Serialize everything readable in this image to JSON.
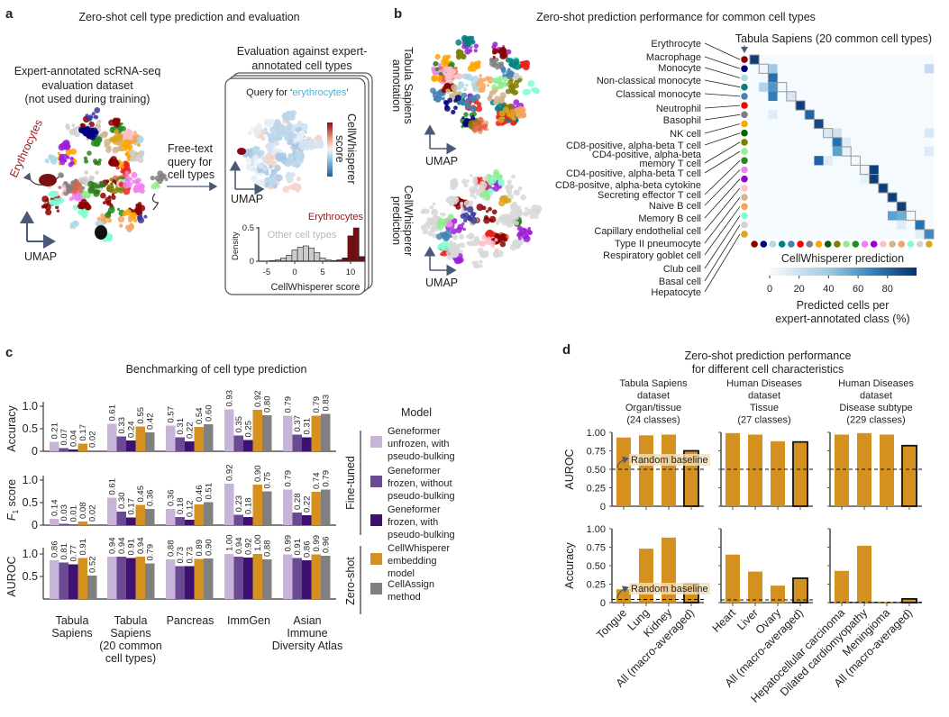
{
  "panel_a": {
    "letter": "a",
    "title": "Zero-shot cell type prediction and evaluation",
    "dataset_label": [
      "Expert-annotated scRNA-seq",
      "evaluation dataset",
      "(not used during training)"
    ],
    "erythrocytes_label": "Erythrocytes",
    "umap_label": "UMAP",
    "query_label": [
      "Free-text",
      "query for",
      "cell types"
    ],
    "eval_title": [
      "Evaluation against expert-",
      "annotated cell types"
    ],
    "query_prefix": "Query for ‘",
    "query_term": "erythrocytes",
    "query_suffix": "’",
    "score_label": [
      "CellWhisperer",
      "score"
    ],
    "umap_label_2": "UMAP",
    "hist_erythrocytes": "Erythrocytes",
    "hist_other": "Other cell types",
    "hist_ylabel": "Density",
    "hist_xlabel": "CellWhisperer score",
    "hist_yticks": [
      "0",
      "0.5"
    ],
    "hist_xticks": [
      "-5",
      "0",
      "5",
      "10"
    ],
    "colors": {
      "erythrocyte": "#8b1a1a",
      "query": "#4bb3d8",
      "other": "#cccccc"
    }
  },
  "panel_b": {
    "letter": "b",
    "title": "Zero-shot prediction performance for common cell types",
    "annotation_label": [
      "Tabula Sapiens",
      "annotation"
    ],
    "prediction_label": [
      "CellWhisperer",
      "prediction"
    ],
    "umap_label": "UMAP",
    "umap_label_2": "UMAP",
    "heatmap_title": "Tabula Sapiens (20 common cell types)",
    "xaxis_label": "CellWhisperer prediction",
    "colorbar_ticks": [
      "0",
      "20",
      "40",
      "60",
      "80"
    ],
    "colorbar_label": [
      "Predicted cells per",
      "expert-annotated class (%)"
    ]
  },
  "panel_c": {
    "letter": "c",
    "title": "Benchmarking of cell type prediction",
    "legend_title": "Model",
    "legend": [
      [
        "Geneformer",
        "unfrozen, with",
        "pseudo-bulking"
      ],
      [
        "Geneformer",
        "frozen, without",
        "pseudo-bulking"
      ],
      [
        "Geneformer",
        "frozen, with",
        "pseudo-bulking"
      ],
      [
        "CellWhisperer",
        "embedding",
        "model"
      ],
      [
        "CellAssign",
        "method"
      ]
    ],
    "group_fine_tuned": "Fine-tuned",
    "group_zero_shot": "Zero-shot",
    "dataset_labels": [
      [
        "Tabula",
        "Sapiens"
      ],
      [
        "Tabula",
        "Sapiens",
        "(20 common",
        "cell types)"
      ],
      [
        "Pancreas"
      ],
      [
        "ImmGen"
      ],
      [
        "Asian",
        "Immune",
        "Diversity Atlas"
      ]
    ]
  },
  "panel_d": {
    "letter": "d",
    "title": [
      "Zero-shot prediction performance",
      "for different cell characteristics"
    ],
    "column_headers": [
      [
        "Tabula Sapiens",
        "dataset",
        "Organ/tissue",
        "(24 classes)"
      ],
      [
        "Human Diseases",
        "dataset",
        "Tissue",
        "(27 classes)"
      ],
      [
        "Human Diseases",
        "dataset",
        "Disease subtype",
        "(229 classes)"
      ]
    ],
    "random_baseline_label": "Random baseline"
  },
  "chart_data": [
    {
      "id": "a-histogram",
      "type": "bar",
      "xlabel": "CellWhisperer score",
      "ylabel": "Density",
      "xlim": [
        -6,
        12.5
      ],
      "ylim": [
        0,
        0.5
      ],
      "series": [
        {
          "name": "Other cell types",
          "x": [
            -4,
            -3,
            -2,
            -1,
            0,
            1,
            2,
            3,
            4,
            5,
            6
          ],
          "values": [
            0.01,
            0.02,
            0.05,
            0.09,
            0.17,
            0.21,
            0.23,
            0.2,
            0.13,
            0.05,
            0.02
          ],
          "color": "#cccccc"
        },
        {
          "name": "Erythrocytes",
          "x": [
            7,
            8,
            9,
            10,
            11,
            12
          ],
          "values": [
            0.01,
            0.02,
            0.05,
            0.38,
            0.5,
            0.07
          ],
          "color": "#7a0c0c"
        }
      ]
    },
    {
      "id": "b-heatmap",
      "type": "heatmap",
      "title": "Tabula Sapiens (20 common cell types)",
      "xlabel": "CellWhisperer prediction",
      "colorbar_label": "Predicted cells per expert-annotated class (%)",
      "zlim": [
        0,
        100
      ],
      "categories": [
        {
          "label": [
            "Erythrocyte"
          ],
          "color": "#8b0000"
        },
        {
          "label": [
            "Macrophage"
          ],
          "color": "#000080"
        },
        {
          "label": [
            "Monocyte"
          ],
          "color": "#add8e6"
        },
        {
          "label": [
            "Non-classical monocyte"
          ],
          "color": "#008080"
        },
        {
          "label": [
            "Classical monocyte"
          ],
          "color": "#4682b4"
        },
        {
          "label": [
            "Neutrophil"
          ],
          "color": "#ff0000"
        },
        {
          "label": [
            "Basophil"
          ],
          "color": "#808080"
        },
        {
          "label": [
            "NK cell"
          ],
          "color": "#ffa500"
        },
        {
          "label": [
            "CD8-positive, alpha-beta T cell"
          ],
          "color": "#006400"
        },
        {
          "label": [
            "CD4-positive, alpha-beta",
            "memory T cell"
          ],
          "color": "#808000"
        },
        {
          "label": [
            "CD4-positive, alpha-beta T cell"
          ],
          "color": "#90ee90"
        },
        {
          "label": [
            "CD8-positve, alpha-beta cytokine",
            "Secreting effector T cell"
          ],
          "color": "#228b22"
        },
        {
          "label": [
            "Naive B cell"
          ],
          "color": "#ee82ee"
        },
        {
          "label": [
            "Memory B cell"
          ],
          "color": "#9400d3"
        },
        {
          "label": [
            "Capillary endothelial cell"
          ],
          "color": "#ffc0cb"
        },
        {
          "label": [
            "Type II pneumocyte"
          ],
          "color": "#d2b48c"
        },
        {
          "label": [
            "Respiratory goblet cell"
          ],
          "color": "#f4a460"
        },
        {
          "label": [
            "Club cell"
          ],
          "color": "#7fffd4"
        },
        {
          "label": [
            "Basal cell"
          ],
          "color": "#d3d3d3"
        },
        {
          "label": [
            "Hepatocyte"
          ],
          "color": "#daa520"
        }
      ],
      "background_value": 1,
      "cells": [
        [
          0,
          0,
          95
        ],
        [
          1,
          1,
          5
        ],
        [
          1,
          2,
          35
        ],
        [
          1,
          19,
          25
        ],
        [
          2,
          2,
          75
        ],
        [
          3,
          1,
          30
        ],
        [
          3,
          2,
          60
        ],
        [
          3,
          3,
          3
        ],
        [
          4,
          2,
          70
        ],
        [
          4,
          4,
          15
        ],
        [
          5,
          5,
          95
        ],
        [
          6,
          6,
          80
        ],
        [
          6,
          2,
          12
        ],
        [
          7,
          7,
          90
        ],
        [
          8,
          8,
          15
        ],
        [
          8,
          9,
          20
        ],
        [
          8,
          19,
          15
        ],
        [
          9,
          9,
          75
        ],
        [
          9,
          10,
          12
        ],
        [
          10,
          9,
          55
        ],
        [
          10,
          10,
          8
        ],
        [
          10,
          19,
          12
        ],
        [
          11,
          7,
          80
        ],
        [
          11,
          8,
          12
        ],
        [
          11,
          11,
          2
        ],
        [
          12,
          12,
          5
        ],
        [
          12,
          13,
          95
        ],
        [
          13,
          12,
          8
        ],
        [
          13,
          13,
          95
        ],
        [
          14,
          14,
          95
        ],
        [
          15,
          15,
          95
        ],
        [
          16,
          16,
          95
        ],
        [
          17,
          15,
          55
        ],
        [
          17,
          16,
          50
        ],
        [
          17,
          17,
          2
        ],
        [
          18,
          16,
          12
        ],
        [
          18,
          18,
          75
        ],
        [
          19,
          18,
          10
        ],
        [
          19,
          19,
          65
        ]
      ]
    },
    {
      "id": "c-benchmark",
      "type": "bar",
      "title": "Benchmarking of cell type prediction",
      "categories": [
        "Tabula Sapiens",
        "Tabula Sapiens (20 common cell types)",
        "Pancreas",
        "ImmGen",
        "Asian Immune Diversity Atlas"
      ],
      "metrics": [
        {
          "name": "Accuracy",
          "yticks": [
            "0",
            "0.5",
            "1.0"
          ],
          "ylim": [
            0,
            1
          ]
        },
        {
          "name": "F",
          "subscript": "1",
          "suffix": " score",
          "yticks": [
            "0",
            "0.5",
            "1.0"
          ],
          "ylim": [
            0,
            1
          ]
        },
        {
          "name": "AUROC",
          "yticks": [
            "0.5",
            "1.0"
          ],
          "ylim": [
            0,
            1
          ]
        }
      ],
      "series": [
        {
          "name": "Geneformer unfrozen, with pseudo-bulking",
          "color": "#c8b4d8",
          "values": [
            [
              0.21,
              0.61,
              0.57,
              0.93,
              0.79
            ],
            [
              0.14,
              0.61,
              0.36,
              0.92,
              0.79
            ],
            [
              0.86,
              0.94,
              0.88,
              1.0,
              0.99
            ]
          ]
        },
        {
          "name": "Geneformer frozen, without pseudo-bulking",
          "color": "#6b4a94",
          "values": [
            [
              0.07,
              0.33,
              0.31,
              0.35,
              0.37
            ],
            [
              0.03,
              0.3,
              0.18,
              0.23,
              0.28
            ],
            [
              0.81,
              0.94,
              0.73,
              0.94,
              0.91
            ]
          ]
        },
        {
          "name": "Geneformer frozen, with pseudo-bulking",
          "color": "#3e1170",
          "values": [
            [
              0.04,
              0.24,
              0.22,
              0.25,
              0.31
            ],
            [
              0.01,
              0.17,
              0.12,
              0.18,
              0.22
            ],
            [
              0.77,
              0.91,
              0.73,
              0.92,
              0.86
            ]
          ]
        },
        {
          "name": "CellWhisperer embedding model",
          "color": "#d4911f",
          "values": [
            [
              0.17,
              0.55,
              0.54,
              0.92,
              0.79
            ],
            [
              0.08,
              0.45,
              0.46,
              0.9,
              0.74
            ],
            [
              0.91,
              0.94,
              0.89,
              1.0,
              0.99
            ]
          ]
        },
        {
          "name": "CellAssign method",
          "color": "#808080",
          "values": [
            [
              0.02,
              0.42,
              0.6,
              0.8,
              0.83
            ],
            [
              0.02,
              0.36,
              0.51,
              0.75,
              0.79
            ],
            [
              0.52,
              0.79,
              0.9,
              0.88,
              0.96
            ]
          ]
        }
      ]
    },
    {
      "id": "d-characteristics",
      "type": "bar",
      "color": "#d4911f",
      "metrics": [
        "AUROC",
        "Accuracy"
      ],
      "yticks": [
        "0",
        "0.25",
        "0.50",
        "0.75",
        "1.00"
      ],
      "ylim": [
        0,
        1
      ],
      "columns": [
        {
          "categories": [
            "Tongue",
            "Lung",
            "Kidney",
            "All (macro-averaged)"
          ],
          "AUROC": [
            0.93,
            0.96,
            0.97,
            0.75
          ],
          "Accuracy": [
            0.18,
            0.73,
            0.88,
            0.25
          ],
          "baseline": {
            "AUROC": 0.5,
            "Accuracy": 0.042
          }
        },
        {
          "categories": [
            "Heart",
            "Liver",
            "Ovary",
            "All (macro-averaged)"
          ],
          "AUROC": [
            0.99,
            0.97,
            0.88,
            0.87
          ],
          "Accuracy": [
            0.65,
            0.42,
            0.23,
            0.33
          ],
          "baseline": {
            "AUROC": 0.5,
            "Accuracy": 0.037
          }
        },
        {
          "categories": [
            "Hepatocellular carcinoma",
            "Dilated cardiomyopathy",
            "Meningioma",
            "All (macro-averaged)"
          ],
          "AUROC": [
            0.97,
            0.99,
            0.97,
            0.82
          ],
          "Accuracy": [
            0.43,
            0.77,
            0.01,
            0.05
          ],
          "baseline": {
            "AUROC": 0.5,
            "Accuracy": 0.004
          }
        }
      ]
    }
  ]
}
